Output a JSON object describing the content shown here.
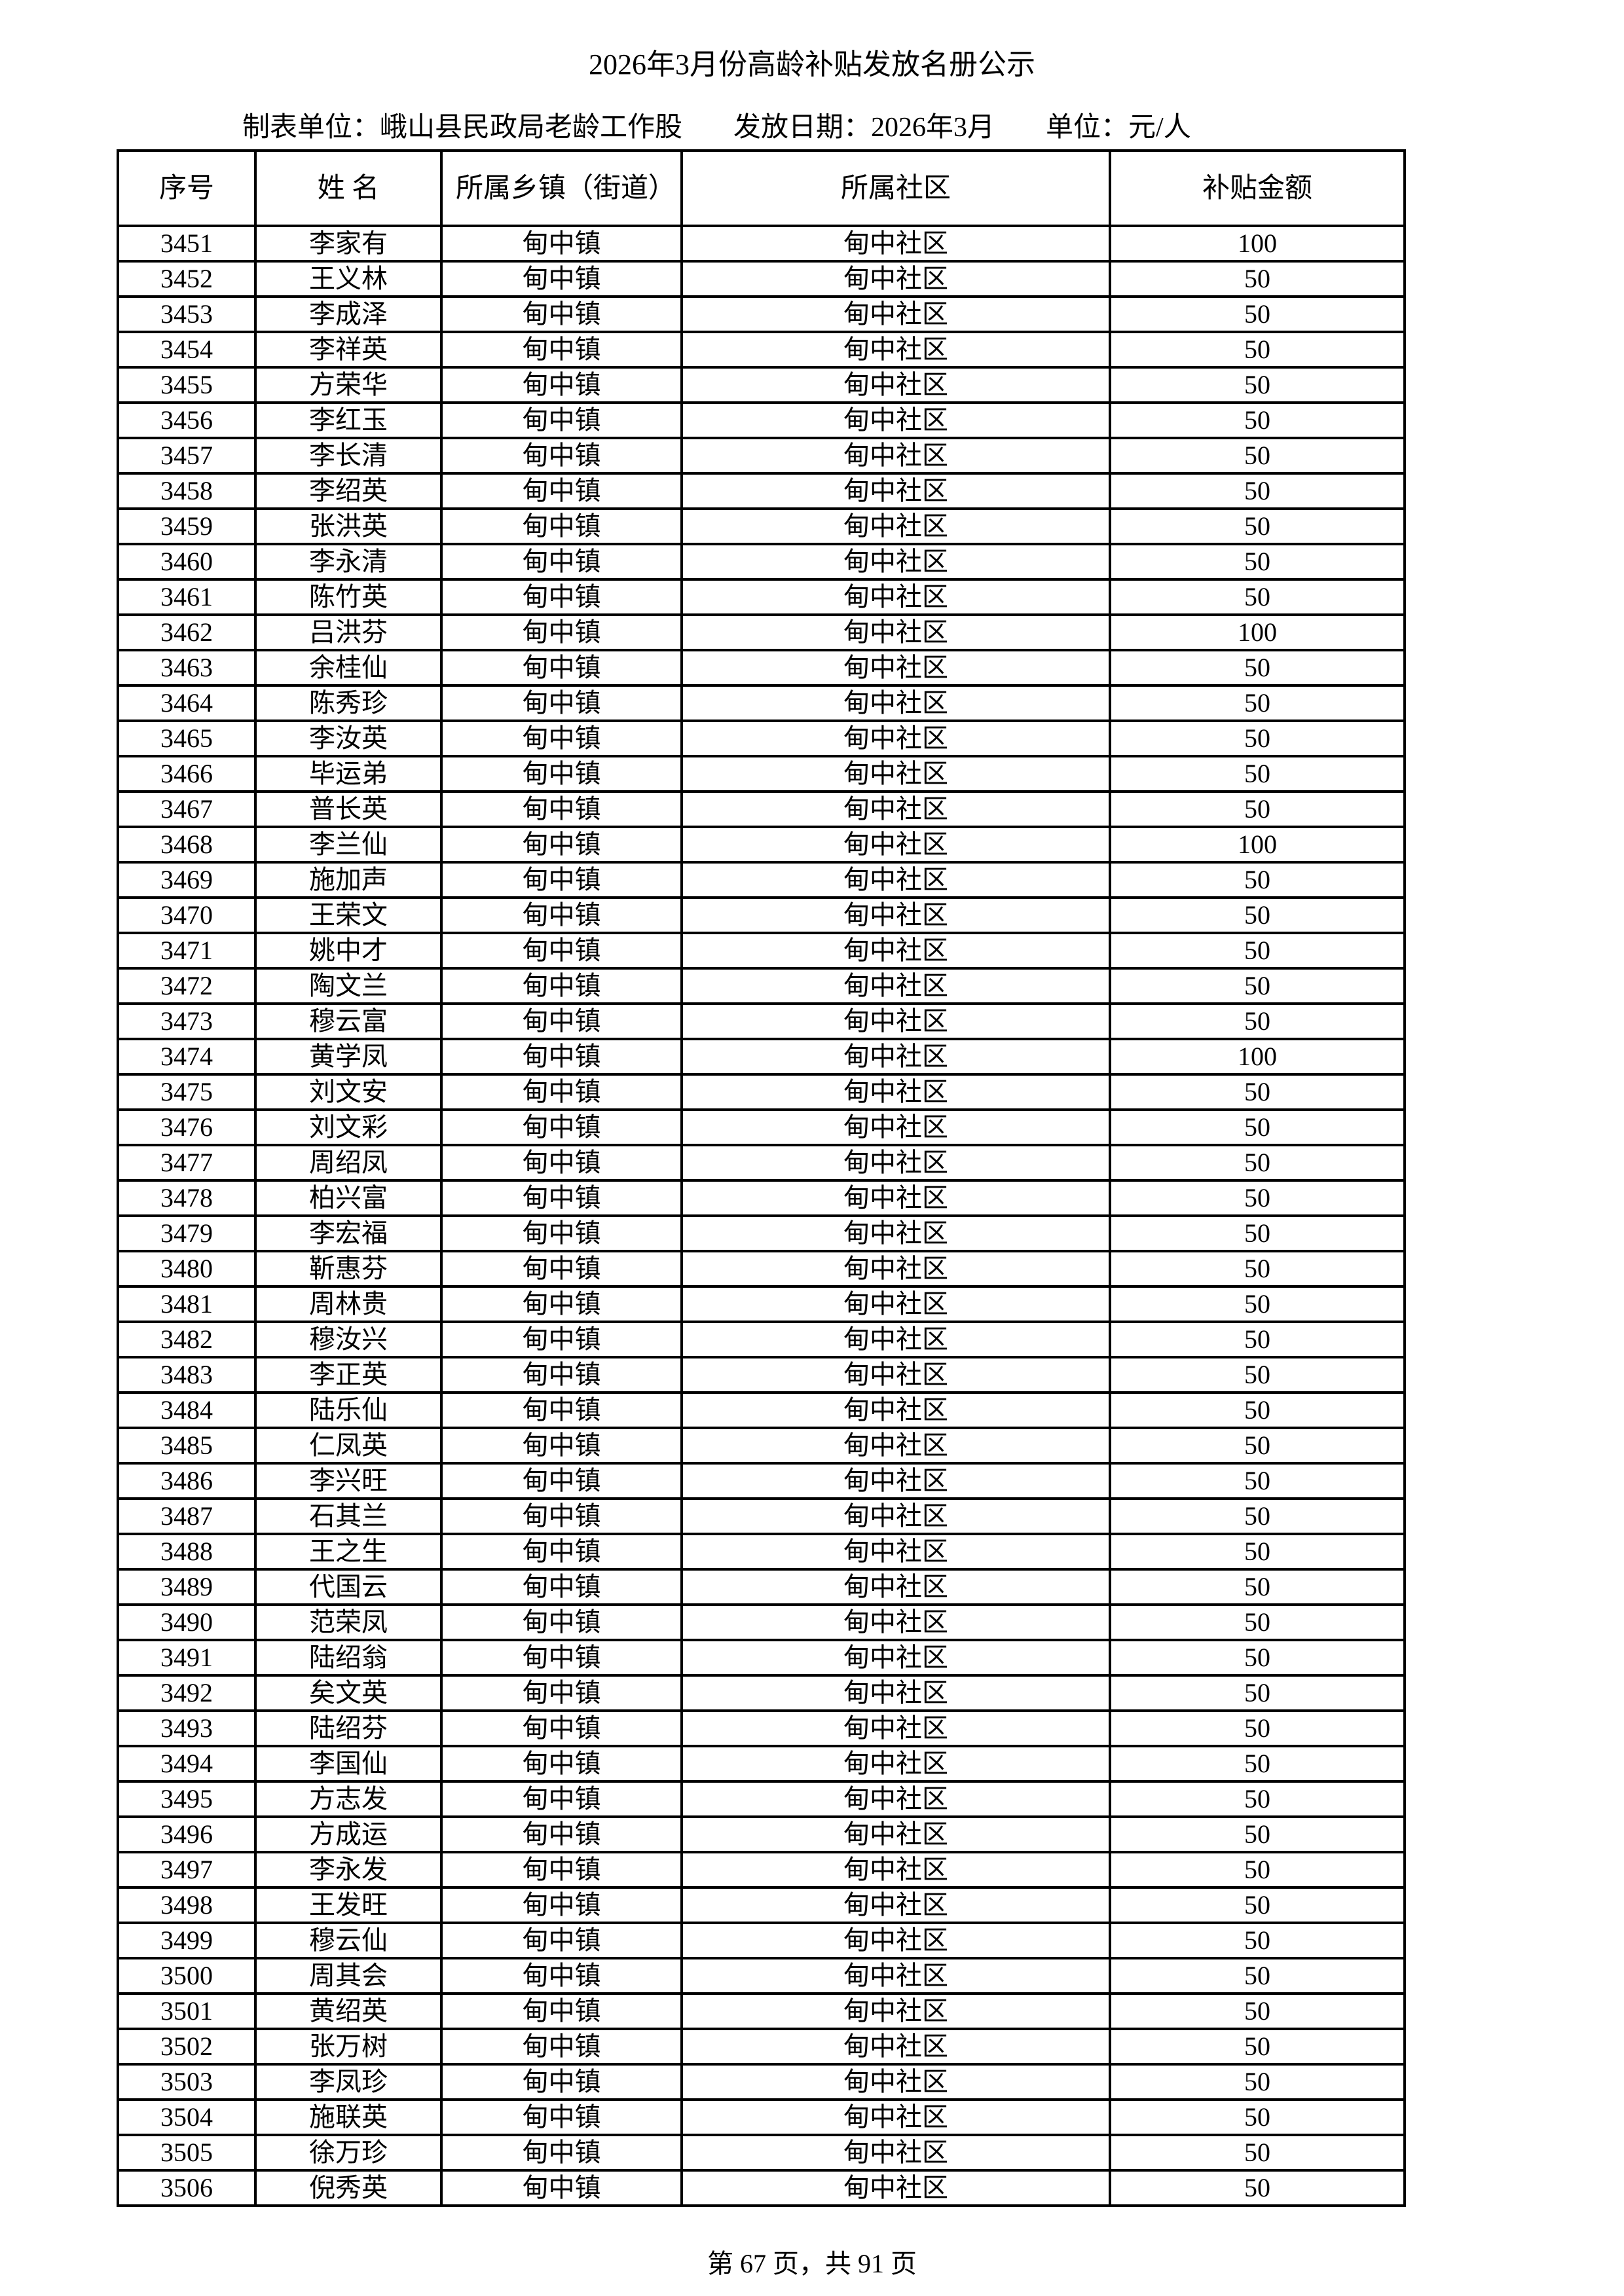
{
  "title": "2026年3月份高龄补贴发放名册公示",
  "subtitle": {
    "unit": "制表单位：峨山县民政局老龄工作股",
    "date": "发放日期：2026年3月",
    "currency": "单位：元/人"
  },
  "table": {
    "headers": [
      "序号",
      "姓 名",
      "所属乡镇（街道）",
      "所属社区",
      "补贴金额"
    ],
    "town": "甸中镇",
    "community": "甸中社区",
    "rows": [
      [
        "3451",
        "李家有",
        "100"
      ],
      [
        "3452",
        "王义林",
        "50"
      ],
      [
        "3453",
        "李成泽",
        "50"
      ],
      [
        "3454",
        "李祥英",
        "50"
      ],
      [
        "3455",
        "方荣华",
        "50"
      ],
      [
        "3456",
        "李红玉",
        "50"
      ],
      [
        "3457",
        "李长清",
        "50"
      ],
      [
        "3458",
        "李绍英",
        "50"
      ],
      [
        "3459",
        "张洪英",
        "50"
      ],
      [
        "3460",
        "李永清",
        "50"
      ],
      [
        "3461",
        "陈竹英",
        "50"
      ],
      [
        "3462",
        "吕洪芬",
        "100"
      ],
      [
        "3463",
        "余桂仙",
        "50"
      ],
      [
        "3464",
        "陈秀珍",
        "50"
      ],
      [
        "3465",
        "李汝英",
        "50"
      ],
      [
        "3466",
        "毕运弟",
        "50"
      ],
      [
        "3467",
        "普长英",
        "50"
      ],
      [
        "3468",
        "李兰仙",
        "100"
      ],
      [
        "3469",
        "施加声",
        "50"
      ],
      [
        "3470",
        "王荣文",
        "50"
      ],
      [
        "3471",
        "姚中才",
        "50"
      ],
      [
        "3472",
        "陶文兰",
        "50"
      ],
      [
        "3473",
        "穆云富",
        "50"
      ],
      [
        "3474",
        "黄学凤",
        "100"
      ],
      [
        "3475",
        "刘文安",
        "50"
      ],
      [
        "3476",
        "刘文彩",
        "50"
      ],
      [
        "3477",
        "周绍凤",
        "50"
      ],
      [
        "3478",
        "柏兴富",
        "50"
      ],
      [
        "3479",
        "李宏福",
        "50"
      ],
      [
        "3480",
        "靳惠芬",
        "50"
      ],
      [
        "3481",
        "周林贵",
        "50"
      ],
      [
        "3482",
        "穆汝兴",
        "50"
      ],
      [
        "3483",
        "李正英",
        "50"
      ],
      [
        "3484",
        "陆乐仙",
        "50"
      ],
      [
        "3485",
        "仁凤英",
        "50"
      ],
      [
        "3486",
        "李兴旺",
        "50"
      ],
      [
        "3487",
        "石其兰",
        "50"
      ],
      [
        "3488",
        "王之生",
        "50"
      ],
      [
        "3489",
        "代国云",
        "50"
      ],
      [
        "3490",
        "范荣凤",
        "50"
      ],
      [
        "3491",
        "陆绍翁",
        "50"
      ],
      [
        "3492",
        "矣文英",
        "50"
      ],
      [
        "3493",
        "陆绍芬",
        "50"
      ],
      [
        "3494",
        "李国仙",
        "50"
      ],
      [
        "3495",
        "方志发",
        "50"
      ],
      [
        "3496",
        "方成运",
        "50"
      ],
      [
        "3497",
        "李永发",
        "50"
      ],
      [
        "3498",
        "王发旺",
        "50"
      ],
      [
        "3499",
        "穆云仙",
        "50"
      ],
      [
        "3500",
        "周其会",
        "50"
      ],
      [
        "3501",
        "黄绍英",
        "50"
      ],
      [
        "3502",
        "张万树",
        "50"
      ],
      [
        "3503",
        "李凤珍",
        "50"
      ],
      [
        "3504",
        "施联英",
        "50"
      ],
      [
        "3505",
        "徐万珍",
        "50"
      ],
      [
        "3506",
        "倪秀英",
        "50"
      ]
    ]
  },
  "footer": "第 67 页，共 91 页"
}
